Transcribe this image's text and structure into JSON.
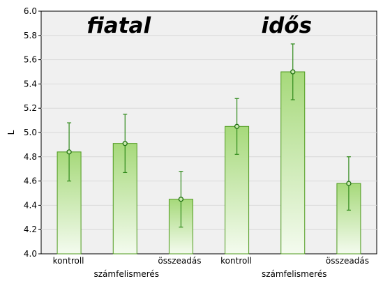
{
  "chart_data": {
    "type": "bar",
    "ylabel": "L",
    "ylim": [
      4.0,
      6.0
    ],
    "yticks": [
      4.0,
      4.2,
      4.4,
      4.6,
      4.8,
      5.0,
      5.2,
      5.4,
      5.6,
      5.8,
      6.0
    ],
    "grid": true,
    "groups": [
      {
        "label": "fiatal",
        "categories": [
          {
            "label": "kontroll",
            "value": 4.84,
            "err_low": 4.6,
            "err_high": 5.08
          },
          {
            "label": "számfelismerés",
            "value": 4.91,
            "err_low": 4.67,
            "err_high": 5.15
          },
          {
            "label": "összeadás",
            "value": 4.45,
            "err_low": 4.22,
            "err_high": 4.68
          }
        ]
      },
      {
        "label": "idős",
        "categories": [
          {
            "label": "kontroll",
            "value": 5.05,
            "err_low": 4.82,
            "err_high": 5.28
          },
          {
            "label": "számfelismerés",
            "value": 5.5,
            "err_low": 5.27,
            "err_high": 5.73
          },
          {
            "label": "összeadás",
            "value": 4.58,
            "err_low": 4.36,
            "err_high": 4.8
          }
        ]
      }
    ],
    "colors": {
      "bar_top": "#a6d97a",
      "bar_bottom": "#f4fbef",
      "bar_stroke": "#4e9a1e",
      "error": "#2f8a1a",
      "plot_bg": "#f0f0f0"
    }
  }
}
